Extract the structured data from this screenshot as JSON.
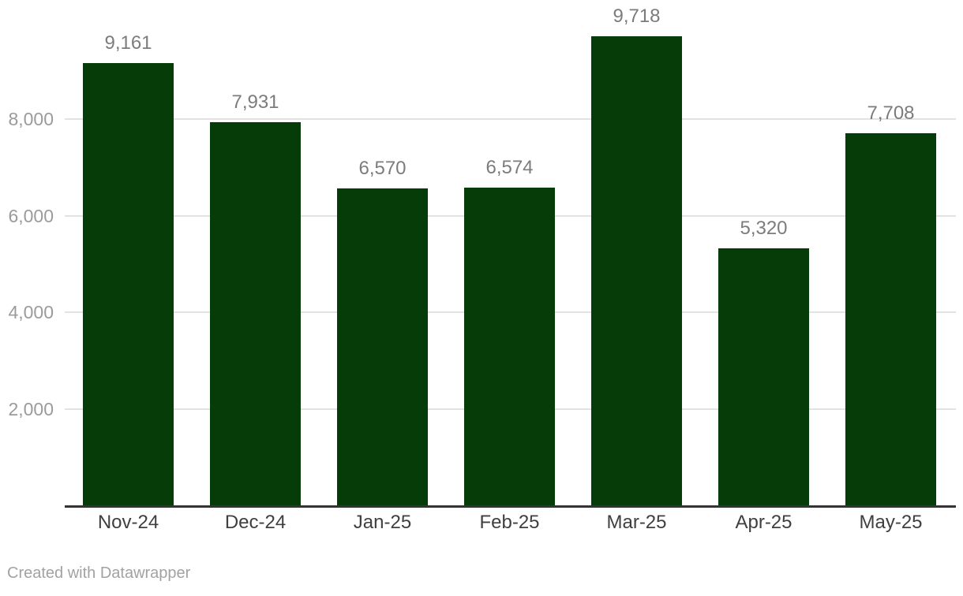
{
  "chart_data": {
    "type": "bar",
    "categories": [
      "Nov-24",
      "Dec-24",
      "Jan-25",
      "Feb-25",
      "Mar-25",
      "Apr-25",
      "May-25"
    ],
    "values": [
      9161,
      7931,
      6570,
      6574,
      9718,
      5320,
      7708
    ],
    "value_labels": [
      "9,161",
      "7,931",
      "6,570",
      "6,574",
      "9,718",
      "5,320",
      "7,708"
    ],
    "title": "",
    "xlabel": "",
    "ylabel": "",
    "ylim": [
      0,
      10500
    ],
    "yticks": [
      2000,
      4000,
      6000,
      8000
    ],
    "ytick_labels": [
      "2,000",
      "4,000",
      "6,000",
      "8,000"
    ],
    "grid": true,
    "legend": false
  },
  "footer": {
    "credit": "Created with Datawrapper"
  },
  "colors": {
    "bar": "#063c08",
    "grid": "#e2e2e2",
    "axis_line": "#333333",
    "tick_label": "#9b9b9b",
    "value_label": "#7c7c7c",
    "category_label": "#3f3f3f",
    "footer_text": "#a2a2a2",
    "background": "#ffffff"
  }
}
